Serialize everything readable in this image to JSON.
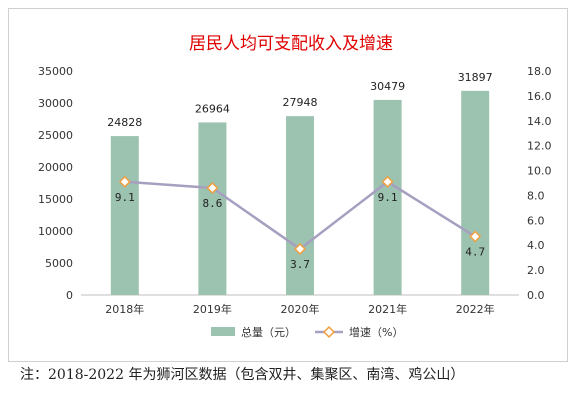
{
  "chart_data": {
    "type": "bar",
    "title": "居民人均可支配收入及增速",
    "categories": [
      "2018年",
      "2019年",
      "2020年",
      "2021年",
      "2022年"
    ],
    "series": [
      {
        "name": "总量（元）",
        "type": "bar",
        "axis": "left",
        "color": "#9cc2b0",
        "values": [
          24828,
          26964,
          27948,
          30479,
          31897
        ]
      },
      {
        "name": "增速（%）",
        "type": "line",
        "axis": "right",
        "color": "#a79fc0",
        "marker_color": "#f0a040",
        "values": [
          9.1,
          8.6,
          3.7,
          9.1,
          4.7
        ]
      }
    ],
    "y_left": {
      "min": 0,
      "max": 35000,
      "ticks": [
        "0",
        "5000",
        "10000",
        "15000",
        "20000",
        "25000",
        "30000",
        "35000"
      ]
    },
    "y_right": {
      "min": 0,
      "max": 18,
      "ticks": [
        "0.0",
        "2.0",
        "4.0",
        "6.0",
        "8.0",
        "10.0",
        "12.0",
        "14.0",
        "16.0",
        "18.0"
      ]
    },
    "bar_labels": [
      "24828",
      "26964",
      "27948",
      "30479",
      "31897"
    ],
    "line_labels": [
      "9.1",
      "8.6",
      "3.7",
      "9.1",
      "4.7"
    ],
    "legend": {
      "position": "bottom"
    }
  },
  "footnote": "注：2018-2022 年为狮河区数据（包含双井、集聚区、南湾、鸡公山）"
}
